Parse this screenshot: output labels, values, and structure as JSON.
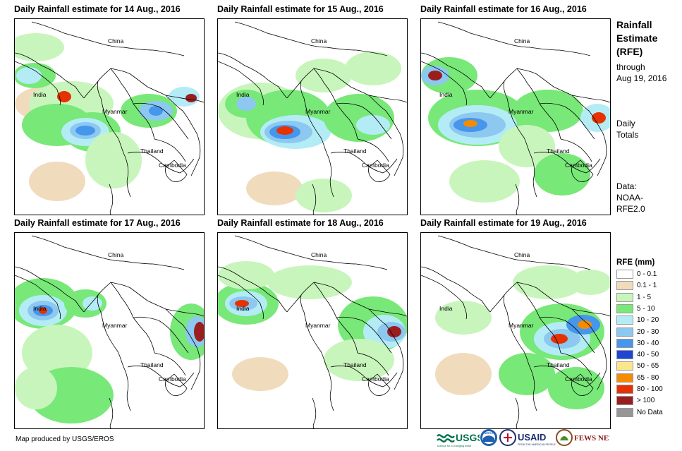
{
  "panels": [
    {
      "title": "Daily Rainfall estimate for 14 Aug., 2016",
      "labels": {
        "china": "China",
        "india": "India",
        "myanmar": "Myanmar",
        "thailand": "Thailand",
        "cambodia": "Cambodia"
      }
    },
    {
      "title": "Daily Rainfall estimate for 15 Aug., 2016",
      "labels": {
        "china": "China",
        "india": "India",
        "myanmar": "Myanmar",
        "thailand": "Thailand",
        "cambodia": "Cambodia"
      }
    },
    {
      "title": "Daily Rainfall estimate for 16 Aug., 2016",
      "labels": {
        "china": "China",
        "india": "India",
        "myanmar": "Myanmar",
        "thailand": "Thailand",
        "cambodia": "Cambodia"
      }
    },
    {
      "title": "Daily Rainfall estimate for 17 Aug., 2016",
      "labels": {
        "china": "China",
        "india": "India",
        "myanmar": "Myanmar",
        "thailand": "Thailand",
        "cambodia": "Cambodia"
      }
    },
    {
      "title": "Daily Rainfall estimate for 18 Aug., 2016",
      "labels": {
        "china": "China",
        "india": "India",
        "myanmar": "Myanmar",
        "thailand": "Thailand",
        "cambodia": "Cambodia"
      }
    },
    {
      "title": "Daily Rainfall estimate for 19 Aug., 2016",
      "labels": {
        "china": "China",
        "india": "India",
        "myanmar": "Myanmar",
        "thailand": "Thailand",
        "cambodia": "Cambodia"
      }
    }
  ],
  "sidebar": {
    "title_line1": "Rainfall",
    "title_line2": "Estimate",
    "title_line3": "(RFE)",
    "through": "through",
    "date": "Aug 19, 2016",
    "daily": "Daily",
    "totals": "Totals",
    "data_label": "Data:",
    "data_source1": "NOAA-",
    "data_source2": "RFE2.0"
  },
  "legend": {
    "title": "RFE (mm)",
    "items": [
      {
        "label": "0 - 0.1",
        "color": "#ffffff"
      },
      {
        "label": "0.1 - 1",
        "color": "#f0dcbc"
      },
      {
        "label": "1 - 5",
        "color": "#c8f5bc"
      },
      {
        "label": "5 - 10",
        "color": "#78e878"
      },
      {
        "label": "10 - 20",
        "color": "#b4ecf6"
      },
      {
        "label": "20 - 30",
        "color": "#8cc8f0"
      },
      {
        "label": "30 - 40",
        "color": "#4696ec"
      },
      {
        "label": "40 - 50",
        "color": "#1e46d2"
      },
      {
        "label": "50 - 65",
        "color": "#fae68c"
      },
      {
        "label": "65 - 80",
        "color": "#f58c00"
      },
      {
        "label": "80 - 100",
        "color": "#e63200"
      },
      {
        "label": "> 100",
        "color": "#9b1e1e"
      },
      {
        "label": "No Data",
        "color": "#969696"
      }
    ]
  },
  "footer": {
    "credit": "Map produced by USGS/EROS",
    "logo_usgs": "USGS",
    "logo_usgs_tagline": "science for a changing world",
    "logo_noaa": "NOAA",
    "logo_usaid": "USAID",
    "logo_usaid_tagline": "FROM THE AMERICAN PEOPLE",
    "logo_fewsnet": "FEWS NET"
  }
}
